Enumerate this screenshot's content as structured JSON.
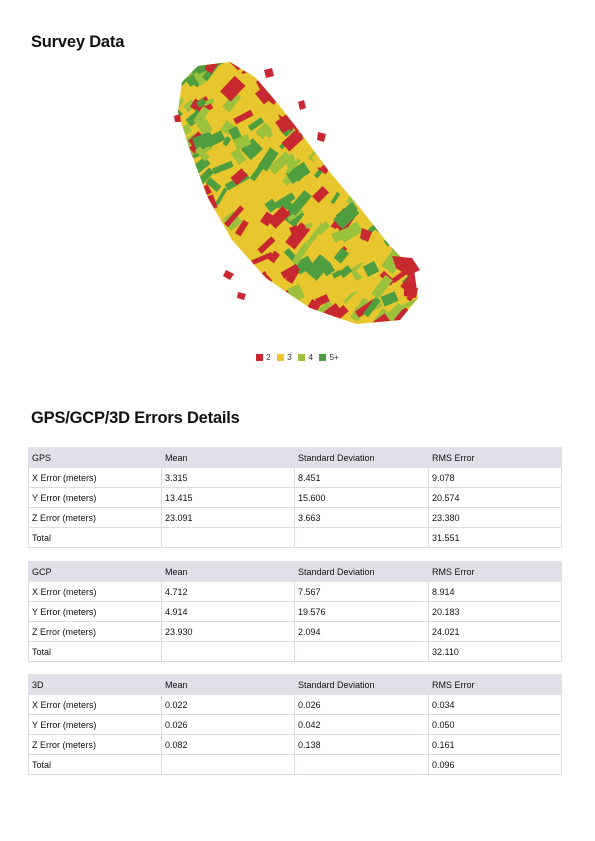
{
  "survey": {
    "title": "Survey Data"
  },
  "legend": [
    {
      "label": "2",
      "color": "#c8282f"
    },
    {
      "label": "3",
      "color": "#e8c62e"
    },
    {
      "label": "4",
      "color": "#9cc13c"
    },
    {
      "label": "5+",
      "color": "#4e9e3f"
    }
  ],
  "errors": {
    "title": "GPS/GCP/3D Errors Details",
    "tables": [
      {
        "header": [
          "GPS",
          "Mean",
          "Standard Deviation",
          "RMS Error"
        ],
        "rows": [
          [
            "X Error (meters)",
            "3.315",
            "8.451",
            "9.078"
          ],
          [
            "Y Error (meters)",
            "13.415",
            "15.600",
            "20.574"
          ],
          [
            "Z Error (meters)",
            "23.091",
            "3.663",
            "23.380"
          ],
          [
            "Total",
            "",
            "",
            "31.551"
          ]
        ]
      },
      {
        "header": [
          "GCP",
          "Mean",
          "Standard Deviation",
          "RMS Error"
        ],
        "rows": [
          [
            "X Error (meters)",
            "4.712",
            "7.567",
            "8.914"
          ],
          [
            "Y Error (meters)",
            "4.914",
            "19.576",
            "20.183"
          ],
          [
            "Z Error (meters)",
            "23.930",
            "2.094",
            "24.021"
          ],
          [
            "Total",
            "",
            "",
            "32.110"
          ]
        ]
      },
      {
        "header": [
          "3D",
          "Mean",
          "Standard Deviation",
          "RMS Error"
        ],
        "rows": [
          [
            "X Error (meters)",
            "0.022",
            "0.026",
            "0.034"
          ],
          [
            "Y Error (meters)",
            "0.026",
            "0.042",
            "0.050"
          ],
          [
            "Z Error (meters)",
            "0.082",
            "0.138",
            "0.161"
          ],
          [
            "Total",
            "",
            "",
            "0.096"
          ]
        ]
      }
    ]
  }
}
